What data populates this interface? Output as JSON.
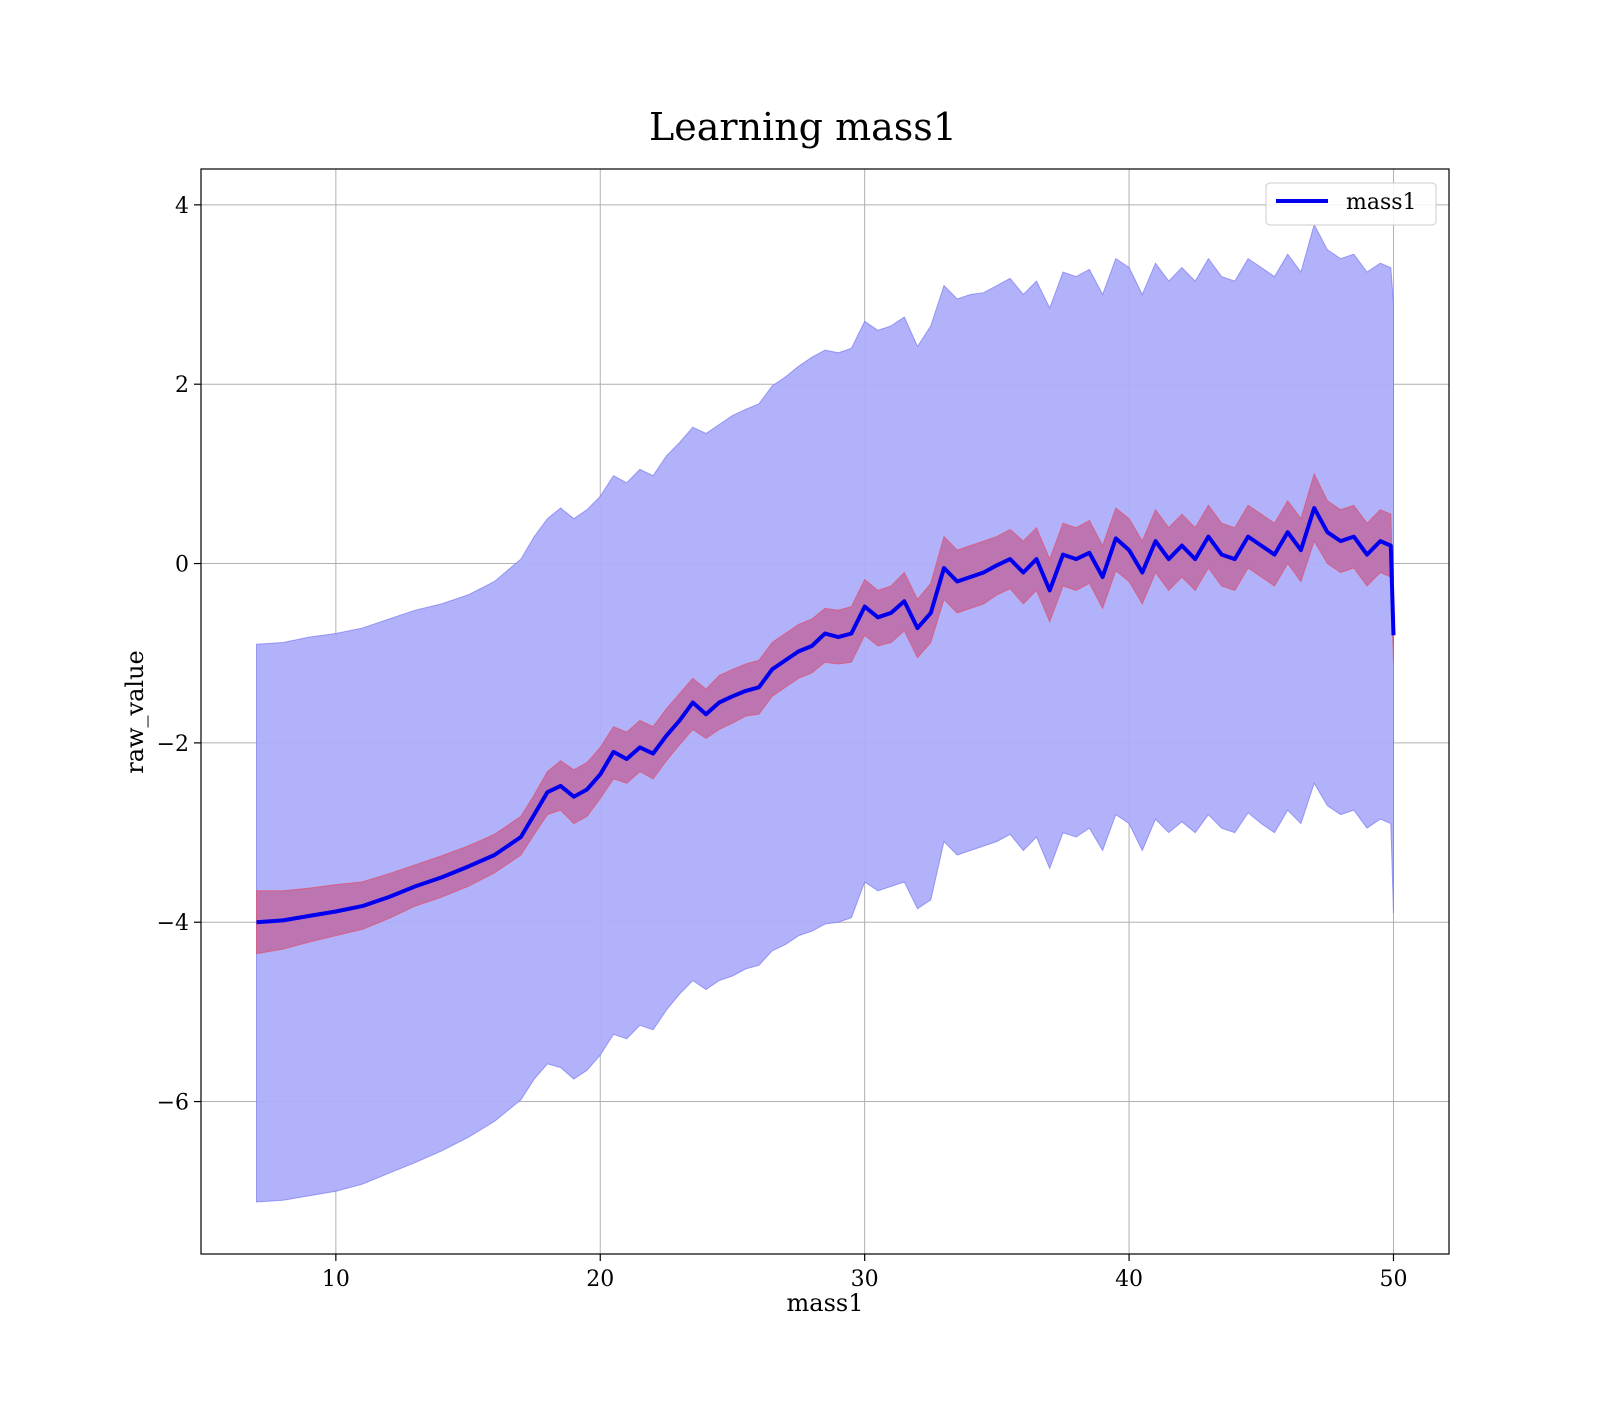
{
  "chart_data": {
    "type": "line",
    "title": "Learning mass1",
    "xlabel": "mass1",
    "ylabel": "raw_value",
    "xlim": [
      4.9,
      52.1
    ],
    "ylim": [
      -7.7,
      4.4
    ],
    "xticks": [
      10,
      20,
      30,
      40,
      50
    ],
    "xtick_labels": [
      "10",
      "20",
      "30",
      "40",
      "50"
    ],
    "yticks": [
      4,
      2,
      0,
      -2,
      -4,
      -6
    ],
    "ytick_labels": [
      "4",
      "2",
      "0",
      "−2",
      "−4",
      "−6"
    ],
    "grid": true,
    "legend_position": "top-right",
    "series": [
      {
        "name": "mass1",
        "color": "#0000ee",
        "x": [
          7,
          8,
          9,
          10,
          11,
          12,
          13,
          14,
          15,
          16,
          17,
          17.5,
          18,
          18.5,
          19,
          19.5,
          20,
          20.5,
          21,
          21.5,
          22,
          22.5,
          23,
          23.5,
          24,
          24.5,
          25,
          25.5,
          26,
          26.5,
          27,
          27.5,
          28,
          28.5,
          29,
          29.5,
          30,
          30.5,
          31,
          31.5,
          32,
          32.5,
          33,
          33.5,
          34,
          34.5,
          35,
          35.5,
          36,
          36.5,
          37,
          37.5,
          38,
          38.5,
          39,
          39.5,
          40,
          40.5,
          41,
          41.5,
          42,
          42.5,
          43,
          43.5,
          44,
          44.5,
          45,
          45.5,
          46,
          46.5,
          47,
          47.5,
          48,
          48.5,
          49,
          49.5,
          49.9,
          50
        ],
        "y": [
          -4.0,
          -3.98,
          -3.93,
          -3.88,
          -3.82,
          -3.72,
          -3.6,
          -3.5,
          -3.38,
          -3.25,
          -3.05,
          -2.8,
          -2.55,
          -2.48,
          -2.6,
          -2.52,
          -2.35,
          -2.1,
          -2.18,
          -2.05,
          -2.12,
          -1.92,
          -1.75,
          -1.55,
          -1.68,
          -1.55,
          -1.48,
          -1.42,
          -1.38,
          -1.18,
          -1.08,
          -0.98,
          -0.92,
          -0.78,
          -0.82,
          -0.78,
          -0.48,
          -0.6,
          -0.55,
          -0.42,
          -0.72,
          -0.55,
          -0.05,
          -0.2,
          -0.15,
          -0.1,
          -0.02,
          0.05,
          -0.1,
          0.05,
          -0.3,
          0.1,
          0.05,
          0.12,
          -0.15,
          0.28,
          0.15,
          -0.1,
          0.25,
          0.05,
          0.2,
          0.05,
          0.3,
          0.1,
          0.05,
          0.3,
          0.2,
          0.1,
          0.35,
          0.15,
          0.62,
          0.35,
          0.25,
          0.3,
          0.1,
          0.25,
          0.2,
          -0.8
        ],
        "band_inner_lower": [
          -4.35,
          -4.3,
          -4.22,
          -4.15,
          -4.08,
          -3.96,
          -3.82,
          -3.72,
          -3.6,
          -3.45,
          -3.25,
          -3.02,
          -2.8,
          -2.75,
          -2.9,
          -2.82,
          -2.62,
          -2.4,
          -2.45,
          -2.32,
          -2.4,
          -2.2,
          -2.02,
          -1.85,
          -1.95,
          -1.85,
          -1.78,
          -1.7,
          -1.68,
          -1.48,
          -1.38,
          -1.28,
          -1.22,
          -1.1,
          -1.12,
          -1.1,
          -0.8,
          -0.92,
          -0.88,
          -0.75,
          -1.05,
          -0.88,
          -0.4,
          -0.55,
          -0.5,
          -0.45,
          -0.35,
          -0.28,
          -0.45,
          -0.3,
          -0.65,
          -0.25,
          -0.3,
          -0.22,
          -0.5,
          -0.08,
          -0.2,
          -0.45,
          -0.1,
          -0.3,
          -0.15,
          -0.3,
          -0.05,
          -0.25,
          -0.3,
          -0.05,
          -0.15,
          -0.25,
          0.0,
          -0.2,
          0.25,
          0.0,
          -0.1,
          -0.05,
          -0.25,
          -0.1,
          -0.15,
          -1.1
        ],
        "band_inner_upper": [
          -3.65,
          -3.65,
          -3.62,
          -3.58,
          -3.55,
          -3.46,
          -3.36,
          -3.26,
          -3.15,
          -3.02,
          -2.82,
          -2.58,
          -2.32,
          -2.2,
          -2.3,
          -2.22,
          -2.05,
          -1.82,
          -1.88,
          -1.75,
          -1.82,
          -1.62,
          -1.45,
          -1.28,
          -1.4,
          -1.25,
          -1.18,
          -1.12,
          -1.08,
          -0.88,
          -0.78,
          -0.68,
          -0.62,
          -0.5,
          -0.52,
          -0.48,
          -0.18,
          -0.3,
          -0.25,
          -0.1,
          -0.4,
          -0.22,
          0.3,
          0.15,
          0.2,
          0.25,
          0.3,
          0.38,
          0.25,
          0.4,
          0.05,
          0.45,
          0.4,
          0.48,
          0.2,
          0.62,
          0.5,
          0.25,
          0.6,
          0.4,
          0.55,
          0.4,
          0.65,
          0.45,
          0.4,
          0.65,
          0.55,
          0.45,
          0.7,
          0.5,
          1.0,
          0.7,
          0.6,
          0.65,
          0.45,
          0.6,
          0.55,
          -0.5
        ],
        "band_outer_lower": [
          -7.12,
          -7.1,
          -7.05,
          -7.0,
          -6.92,
          -6.8,
          -6.68,
          -6.55,
          -6.4,
          -6.22,
          -5.98,
          -5.75,
          -5.58,
          -5.62,
          -5.75,
          -5.65,
          -5.48,
          -5.25,
          -5.3,
          -5.15,
          -5.2,
          -4.98,
          -4.8,
          -4.65,
          -4.75,
          -4.65,
          -4.6,
          -4.52,
          -4.48,
          -4.32,
          -4.25,
          -4.15,
          -4.1,
          -4.02,
          -4.0,
          -3.95,
          -3.55,
          -3.65,
          -3.6,
          -3.55,
          -3.85,
          -3.75,
          -3.1,
          -3.25,
          -3.2,
          -3.15,
          -3.1,
          -3.02,
          -3.2,
          -3.05,
          -3.4,
          -3.0,
          -3.05,
          -2.95,
          -3.2,
          -2.8,
          -2.9,
          -3.2,
          -2.85,
          -3.0,
          -2.88,
          -3.0,
          -2.8,
          -2.95,
          -3.0,
          -2.78,
          -2.9,
          -3.0,
          -2.75,
          -2.9,
          -2.45,
          -2.7,
          -2.8,
          -2.75,
          -2.95,
          -2.85,
          -2.9,
          -3.9
        ],
        "band_outer_upper": [
          -0.9,
          -0.88,
          -0.82,
          -0.78,
          -0.72,
          -0.62,
          -0.52,
          -0.45,
          -0.35,
          -0.2,
          0.05,
          0.3,
          0.5,
          0.62,
          0.5,
          0.6,
          0.75,
          0.98,
          0.9,
          1.05,
          0.98,
          1.2,
          1.35,
          1.52,
          1.45,
          1.55,
          1.65,
          1.72,
          1.78,
          1.98,
          2.08,
          2.2,
          2.3,
          2.38,
          2.35,
          2.4,
          2.7,
          2.6,
          2.65,
          2.75,
          2.42,
          2.65,
          3.1,
          2.95,
          3.0,
          3.02,
          3.1,
          3.18,
          3.0,
          3.15,
          2.85,
          3.25,
          3.2,
          3.28,
          3.0,
          3.4,
          3.3,
          3.0,
          3.35,
          3.15,
          3.3,
          3.15,
          3.4,
          3.2,
          3.15,
          3.4,
          3.3,
          3.2,
          3.45,
          3.25,
          3.78,
          3.5,
          3.4,
          3.45,
          3.25,
          3.35,
          3.3,
          2.9
        ]
      }
    ],
    "colors": {
      "line": "#0000ee",
      "band_outer": "#aeaefa",
      "band_outer_edge": "#6a6af0",
      "band_inner": "#c0609a",
      "band_inner_edge": "#e0506a",
      "grid": "#b0b0b0",
      "axes": "#000000"
    }
  }
}
